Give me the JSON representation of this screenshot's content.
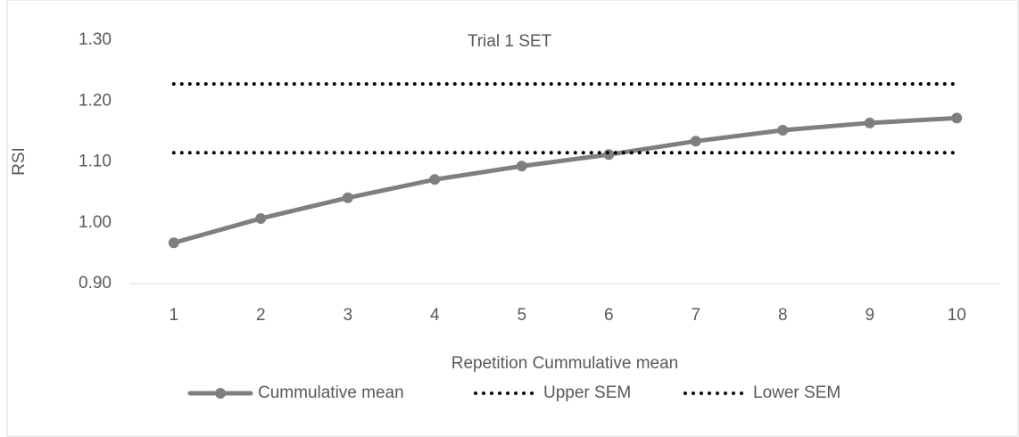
{
  "chart_data": {
    "type": "line",
    "title": "Trial 1 SET",
    "x_label": "Repetition Cummulative mean",
    "y_label": "RSI",
    "categories": [
      "1",
      "2",
      "3",
      "4",
      "5",
      "6",
      "7",
      "8",
      "9",
      "10"
    ],
    "series": [
      {
        "name": "Cummulative mean",
        "color": "#7f7f7f",
        "dash": "solid",
        "marker": "circle",
        "values": [
          0.967,
          1.007,
          1.041,
          1.071,
          1.093,
          1.112,
          1.134,
          1.152,
          1.164,
          1.172
        ]
      },
      {
        "name": "Upper SEM",
        "color": "#000000",
        "dash": "dotted",
        "marker": "none",
        "values": [
          1.228,
          1.228,
          1.228,
          1.228,
          1.228,
          1.228,
          1.228,
          1.228,
          1.228,
          1.228
        ]
      },
      {
        "name": "Lower SEM",
        "color": "#000000",
        "dash": "dotted",
        "marker": "none",
        "values": [
          1.115,
          1.115,
          1.115,
          1.115,
          1.115,
          1.115,
          1.115,
          1.115,
          1.115,
          1.115
        ]
      }
    ],
    "ylim": [
      0.9,
      1.3
    ],
    "yticks": [
      {
        "value": 0.9,
        "label": "0.90"
      },
      {
        "value": 1.0,
        "label": "1.00"
      },
      {
        "value": 1.1,
        "label": "1.10"
      },
      {
        "value": 1.2,
        "label": "1.20"
      },
      {
        "value": 1.3,
        "label": "1.30"
      }
    ],
    "grid": false,
    "legend": "bottom"
  }
}
